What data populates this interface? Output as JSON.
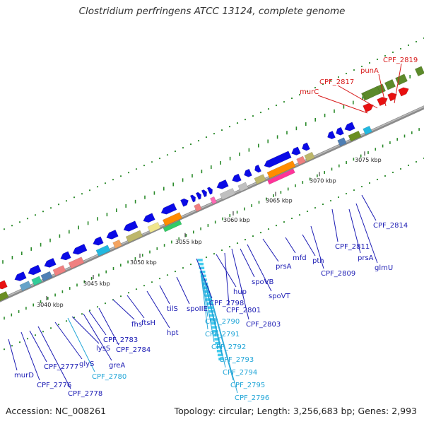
{
  "title": "Clostridium perfringens ATCC 13124, complete genome",
  "accession": "Accession: NC_008261",
  "summary": "Topology: circular; Length: 3,256,683 bp; Genes: 2,993",
  "colors": {
    "gene_label": "#1c1cb4",
    "trna_label": "#22a6d8",
    "rna_gene_label": "#d81c1c",
    "cds_arrow": "#0a0ae6",
    "rna_arrow": "#e81010",
    "trna_block": "#44ccee",
    "backbone": "#7f7f7f",
    "tick": "#2a8a2a"
  },
  "position_ticks": [
    {
      "id": "t3040",
      "label": "3040 kbp"
    },
    {
      "id": "t3045",
      "label": "3045 kbp"
    },
    {
      "id": "t3050",
      "label": "3050 kbp"
    },
    {
      "id": "t3055",
      "label": "3055 kbp"
    },
    {
      "id": "t3060",
      "label": "3060 kbp"
    },
    {
      "id": "t3065",
      "label": "3065 kbp"
    },
    {
      "id": "t3070",
      "label": "3070 kbp"
    },
    {
      "id": "t3075",
      "label": "3075 kbp"
    }
  ],
  "top_labels": [
    {
      "id": "murC",
      "text": "murC"
    },
    {
      "id": "CPF_2817",
      "text": "CPF_2817"
    },
    {
      "id": "punA",
      "text": "punA"
    },
    {
      "id": "CPF_2819",
      "text": "CPF_2819"
    }
  ],
  "bottom_labels": [
    {
      "id": "murD",
      "text": "murD"
    },
    {
      "id": "CPF_2776",
      "text": "CPF_2776"
    },
    {
      "id": "CPF_2777",
      "text": "CPF_2777"
    },
    {
      "id": "CPF_2778",
      "text": "CPF_2778"
    },
    {
      "id": "glyS",
      "text": "glyS"
    },
    {
      "id": "CPF_2780",
      "text": "CPF_2780"
    },
    {
      "id": "lysS",
      "text": "lysS"
    },
    {
      "id": "greA",
      "text": "greA"
    },
    {
      "id": "CPF_2783",
      "text": "CPF_2783"
    },
    {
      "id": "CPF_2784",
      "text": "CPF_2784"
    },
    {
      "id": "fhs",
      "text": "fhs"
    },
    {
      "id": "ftsH",
      "text": "ftsH"
    },
    {
      "id": "hpt",
      "text": "hpt"
    },
    {
      "id": "tilS",
      "text": "tilS"
    },
    {
      "id": "spoIIE",
      "text": "spoIIE"
    },
    {
      "id": "CPF_2790",
      "text": "CPF_2790"
    },
    {
      "id": "CPF_2791",
      "text": "CPF_2791"
    },
    {
      "id": "CPF_2792",
      "text": "CPF_2792"
    },
    {
      "id": "CPF_2793",
      "text": "CPF_2793"
    },
    {
      "id": "CPF_2794",
      "text": "CPF_2794"
    },
    {
      "id": "CPF_2795",
      "text": "CPF_2795"
    },
    {
      "id": "CPF_2796",
      "text": "CPF_2796"
    },
    {
      "id": "CPF_2798",
      "text": "CPF_2798"
    },
    {
      "id": "hup",
      "text": "hup"
    },
    {
      "id": "CPF_2801",
      "text": "CPF_2801"
    },
    {
      "id": "CPF_2803",
      "text": "CPF_2803"
    },
    {
      "id": "spoVB",
      "text": "spoVB"
    },
    {
      "id": "spoVT",
      "text": "spoVT"
    },
    {
      "id": "prsA_1",
      "text": "prsA"
    },
    {
      "id": "mfd",
      "text": "mfd"
    },
    {
      "id": "pth",
      "text": "pth"
    },
    {
      "id": "CPF_2809",
      "text": "CPF_2809"
    },
    {
      "id": "CPF_2811",
      "text": "CPF_2811"
    },
    {
      "id": "prsA_2",
      "text": "prsA"
    },
    {
      "id": "glmU",
      "text": "glmU"
    },
    {
      "id": "CPF_2814",
      "text": "CPF_2814"
    }
  ]
}
